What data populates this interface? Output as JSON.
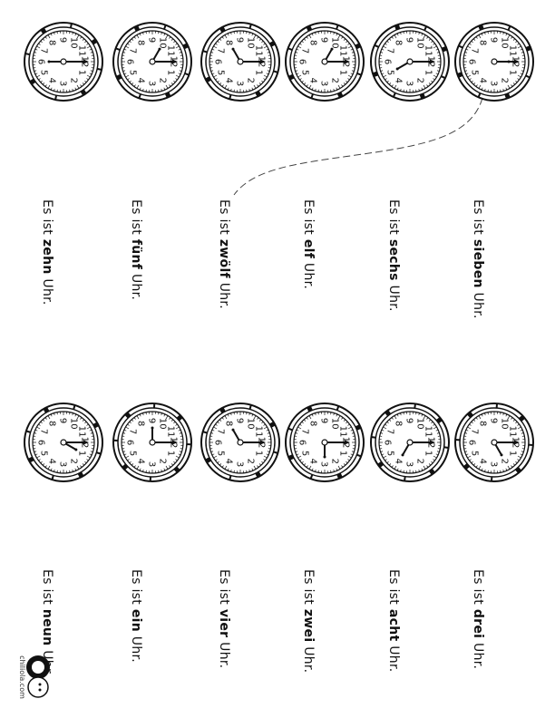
{
  "sentence_prefix": "Es ist",
  "sentence_suffix": "Uhr.",
  "top_row": {
    "clocks": [
      {
        "hour": 6
      },
      {
        "hour": 10
      },
      {
        "hour": 8
      },
      {
        "hour": 10
      },
      {
        "hour": 5
      },
      {
        "hour": 12
      }
    ],
    "words": [
      "zehn",
      "fünf",
      "zwölf",
      "elf",
      "sechs",
      "sieben"
    ]
  },
  "bottom_row": {
    "clocks": [
      {
        "hour": 1
      },
      {
        "hour": 9
      },
      {
        "hour": 8
      },
      {
        "hour": 3
      },
      {
        "hour": 4
      },
      {
        "hour": 2
      }
    ],
    "words": [
      "neun",
      "ein",
      "vier",
      "zwei",
      "acht",
      "drei"
    ]
  },
  "logo_text": "chiliola.com",
  "colors": {
    "ink": "#111111",
    "paper": "#ffffff"
  }
}
